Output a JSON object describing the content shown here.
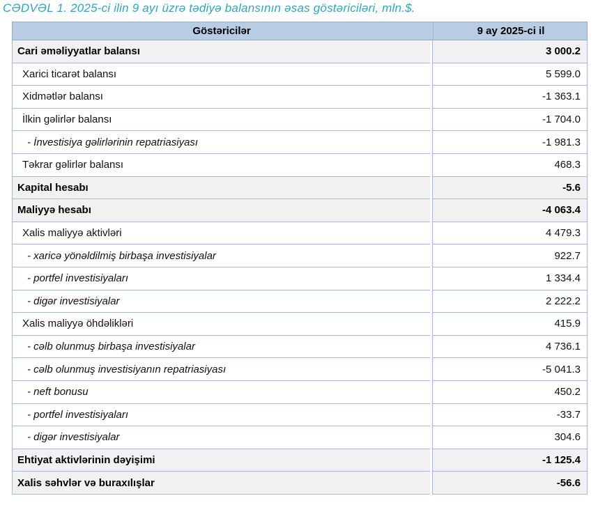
{
  "title": "CƏDVƏL 1. 2025-ci ilin 9 ayı üzrə tədiyə balansının əsas göstəriciləri, mln.$.",
  "table": {
    "columns": [
      "Göstəricilər",
      "9 ay 2025-ci il"
    ],
    "rows": [
      {
        "label": "Cari əməliyyatlar balansı",
        "value": "3 000.2",
        "style": "section"
      },
      {
        "label": "Xarici ticarət balansı",
        "value": "5 599.0",
        "style": "item"
      },
      {
        "label": "Xidmətlər balansı",
        "value": "-1 363.1",
        "style": "item"
      },
      {
        "label": "İlkin gəlirlər balansı",
        "value": "-1 704.0",
        "style": "item"
      },
      {
        "label": "- İnvestisiya gəlirlərinin repatriasiyası",
        "value": "-1 981.3",
        "style": "subitem"
      },
      {
        "label": "Təkrar gəlirlər balansı",
        "value": "468.3",
        "style": "item"
      },
      {
        "label": "Kapital hesabı",
        "value": "-5.6",
        "style": "section"
      },
      {
        "label": "Maliyyə hesabı",
        "value": "-4 063.4",
        "style": "section"
      },
      {
        "label": "Xalis maliyyə aktivləri",
        "value": "4 479.3",
        "style": "item"
      },
      {
        "label": "- xaricə yönəldilmiş birbaşa investisiyalar",
        "value": "922.7",
        "style": "subitem"
      },
      {
        "label": "- portfel investisiyaları",
        "value": "1 334.4",
        "style": "subitem"
      },
      {
        "label": "- digər investisiyalar",
        "value": "2 222.2",
        "style": "subitem"
      },
      {
        "label": "Xalis maliyyə öhdəlikləri",
        "value": "415.9",
        "style": "item"
      },
      {
        "label": "- cəlb olunmuş birbaşa investisiyalar",
        "value": "4 736.1",
        "style": "subitem"
      },
      {
        "label": "- cəlb olunmuş investisiyanın repatriasiyası",
        "value": "-5 041.3",
        "style": "subitem"
      },
      {
        "label": "- neft bonusu",
        "value": "450.2",
        "style": "subitem"
      },
      {
        "label": "- portfel investisiyaları",
        "value": "-33.7",
        "style": "subitem"
      },
      {
        "label": "- digər investisiyalar",
        "value": "304.6",
        "style": "subitem"
      },
      {
        "label": "Ehtiyat aktivlərinin dəyişimi",
        "value": "-1 125.4",
        "style": "section"
      },
      {
        "label": "Xalis səhvlər və buraxılışlar",
        "value": "-56.6",
        "style": "section"
      }
    ]
  },
  "colors": {
    "title_teal": "#36a3b9",
    "header_bg": "#b8cce4",
    "grid_border": "#a5b9d6",
    "section_row_bg": "#f1f1f1"
  }
}
